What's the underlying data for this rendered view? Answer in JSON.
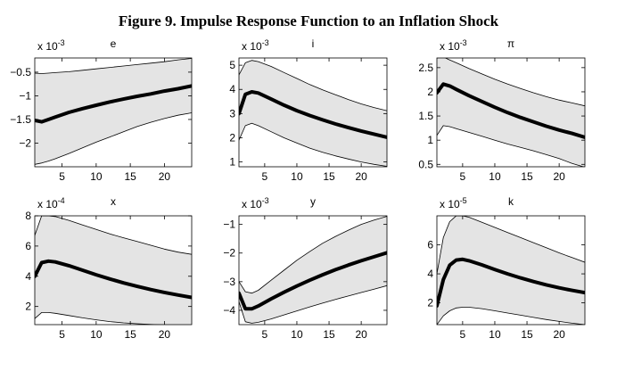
{
  "figure_title": "Figure 9. Impulse Response Function to an Inflation Shock",
  "colors": {
    "band_fill": "#e4e4e4",
    "line": "#000000",
    "axis": "#000000"
  },
  "chart_data": [
    {
      "type": "area",
      "title": "e",
      "multiplier": "x 10",
      "exponent": "-3",
      "xlim": [
        1,
        24
      ],
      "ylim": [
        -2.5,
        -0.2
      ],
      "xticks": [
        5,
        10,
        15,
        20
      ],
      "yticks": [
        -2,
        -1.5,
        -1,
        -0.5
      ],
      "ytick_labels": [
        "−2",
        "−1.5",
        "−1",
        "−0.5"
      ],
      "x": [
        1,
        2,
        3,
        4,
        6,
        8,
        10,
        12,
        14,
        16,
        18,
        20,
        22,
        24
      ],
      "series": [
        {
          "role": "band_upper",
          "values": [
            -0.52,
            -0.53,
            -0.52,
            -0.51,
            -0.49,
            -0.46,
            -0.43,
            -0.4,
            -0.37,
            -0.34,
            -0.31,
            -0.28,
            -0.24,
            -0.21
          ]
        },
        {
          "role": "band_lower",
          "values": [
            -2.45,
            -2.42,
            -2.38,
            -2.33,
            -2.22,
            -2.1,
            -1.98,
            -1.87,
            -1.76,
            -1.65,
            -1.56,
            -1.48,
            -1.41,
            -1.36
          ]
        },
        {
          "role": "median",
          "values": [
            -1.52,
            -1.55,
            -1.5,
            -1.45,
            -1.35,
            -1.27,
            -1.2,
            -1.13,
            -1.07,
            -1.01,
            -0.96,
            -0.9,
            -0.85,
            -0.79
          ]
        }
      ]
    },
    {
      "type": "area",
      "title": "i",
      "multiplier": "x 10",
      "exponent": "-3",
      "xlim": [
        1,
        24
      ],
      "ylim": [
        0.8,
        5.3
      ],
      "xticks": [
        5,
        10,
        15,
        20
      ],
      "yticks": [
        1,
        2,
        3,
        4,
        5
      ],
      "ytick_labels": [
        "1",
        "2",
        "3",
        "4",
        "5"
      ],
      "x": [
        1,
        2,
        3,
        4,
        6,
        8,
        10,
        12,
        14,
        16,
        18,
        20,
        22,
        24
      ],
      "series": [
        {
          "role": "band_upper",
          "values": [
            4.6,
            5.1,
            5.2,
            5.15,
            4.95,
            4.7,
            4.45,
            4.2,
            3.98,
            3.78,
            3.58,
            3.4,
            3.25,
            3.12
          ]
        },
        {
          "role": "band_lower",
          "values": [
            1.9,
            2.5,
            2.6,
            2.5,
            2.25,
            2.0,
            1.78,
            1.57,
            1.4,
            1.25,
            1.12,
            1.0,
            0.9,
            0.82
          ]
        },
        {
          "role": "median",
          "values": [
            3.0,
            3.8,
            3.9,
            3.85,
            3.6,
            3.35,
            3.12,
            2.92,
            2.74,
            2.57,
            2.42,
            2.28,
            2.15,
            2.02
          ]
        }
      ]
    },
    {
      "type": "area",
      "title": "π",
      "multiplier": "x 10",
      "exponent": "-3",
      "xlim": [
        1,
        24
      ],
      "ylim": [
        0.45,
        2.7
      ],
      "xticks": [
        5,
        10,
        15,
        20
      ],
      "yticks": [
        0.5,
        1,
        1.5,
        2,
        2.5
      ],
      "ytick_labels": [
        "0.5",
        "1",
        "1.5",
        "2",
        "2.5"
      ],
      "x": [
        1,
        2,
        3,
        4,
        6,
        8,
        10,
        12,
        14,
        16,
        18,
        20,
        22,
        24
      ],
      "series": [
        {
          "role": "band_upper",
          "values": [
            2.7,
            2.72,
            2.66,
            2.6,
            2.48,
            2.37,
            2.26,
            2.16,
            2.07,
            1.98,
            1.9,
            1.83,
            1.77,
            1.71
          ]
        },
        {
          "role": "band_lower",
          "values": [
            1.1,
            1.3,
            1.28,
            1.24,
            1.16,
            1.08,
            1.0,
            0.92,
            0.85,
            0.78,
            0.7,
            0.62,
            0.52,
            0.44
          ]
        },
        {
          "role": "median",
          "values": [
            1.98,
            2.16,
            2.12,
            2.05,
            1.92,
            1.8,
            1.68,
            1.57,
            1.47,
            1.38,
            1.29,
            1.21,
            1.14,
            1.06
          ]
        }
      ]
    },
    {
      "type": "area",
      "title": "x",
      "multiplier": "x 10",
      "exponent": "-4",
      "xlim": [
        1,
        24
      ],
      "ylim": [
        0.8,
        8
      ],
      "xticks": [
        5,
        10,
        15,
        20
      ],
      "yticks": [
        2,
        4,
        6,
        8
      ],
      "ytick_labels": [
        "2",
        "4",
        "6",
        "8"
      ],
      "x": [
        1,
        2,
        3,
        4,
        6,
        8,
        10,
        12,
        14,
        16,
        18,
        20,
        22,
        24
      ],
      "series": [
        {
          "role": "band_upper",
          "values": [
            6.7,
            8.0,
            8.0,
            7.95,
            7.7,
            7.4,
            7.1,
            6.8,
            6.55,
            6.3,
            6.05,
            5.8,
            5.6,
            5.45
          ]
        },
        {
          "role": "band_lower",
          "values": [
            1.2,
            1.6,
            1.6,
            1.55,
            1.4,
            1.25,
            1.12,
            1.0,
            0.92,
            0.86,
            0.81,
            0.78,
            0.75,
            0.72
          ]
        },
        {
          "role": "median",
          "values": [
            4.0,
            4.9,
            5.0,
            4.95,
            4.7,
            4.4,
            4.1,
            3.82,
            3.56,
            3.33,
            3.12,
            2.93,
            2.76,
            2.6
          ]
        }
      ]
    },
    {
      "type": "area",
      "title": "y",
      "multiplier": "x 10",
      "exponent": "-3",
      "xlim": [
        1,
        24
      ],
      "ylim": [
        -4.5,
        -0.7
      ],
      "xticks": [
        5,
        10,
        15,
        20
      ],
      "yticks": [
        -4,
        -3,
        -2,
        -1
      ],
      "ytick_labels": [
        "−4",
        "−3",
        "−2",
        "−1"
      ],
      "x": [
        1,
        2,
        3,
        4,
        6,
        8,
        10,
        12,
        14,
        16,
        18,
        20,
        22,
        24
      ],
      "series": [
        {
          "role": "band_upper",
          "values": [
            -3.0,
            -3.35,
            -3.4,
            -3.3,
            -2.95,
            -2.6,
            -2.25,
            -1.95,
            -1.66,
            -1.42,
            -1.2,
            -1.0,
            -0.85,
            -0.72
          ]
        },
        {
          "role": "band_lower",
          "values": [
            -3.7,
            -4.4,
            -4.45,
            -4.42,
            -4.3,
            -4.16,
            -4.02,
            -3.88,
            -3.75,
            -3.62,
            -3.5,
            -3.38,
            -3.26,
            -3.14
          ]
        },
        {
          "role": "median",
          "values": [
            -3.4,
            -3.95,
            -3.95,
            -3.85,
            -3.6,
            -3.37,
            -3.15,
            -2.95,
            -2.76,
            -2.58,
            -2.42,
            -2.27,
            -2.13,
            -1.99
          ]
        }
      ]
    },
    {
      "type": "area",
      "title": "k",
      "multiplier": "x 10",
      "exponent": "-5",
      "xlim": [
        1,
        24
      ],
      "ylim": [
        0.5,
        8
      ],
      "xticks": [
        5,
        10,
        15,
        20
      ],
      "yticks": [
        2,
        4,
        6
      ],
      "ytick_labels": [
        "2",
        "4",
        "6"
      ],
      "x": [
        1,
        2,
        3,
        4,
        5,
        6,
        8,
        10,
        12,
        14,
        16,
        18,
        20,
        22,
        24
      ],
      "series": [
        {
          "role": "band_upper",
          "values": [
            4.0,
            6.5,
            7.6,
            8.0,
            8.0,
            7.9,
            7.55,
            7.2,
            6.85,
            6.5,
            6.15,
            5.8,
            5.45,
            5.12,
            4.8
          ]
        },
        {
          "role": "band_lower",
          "values": [
            0.5,
            1.1,
            1.45,
            1.65,
            1.7,
            1.7,
            1.6,
            1.45,
            1.3,
            1.15,
            1.0,
            0.85,
            0.72,
            0.6,
            0.5
          ]
        },
        {
          "role": "median",
          "values": [
            1.8,
            3.6,
            4.6,
            4.95,
            5.0,
            4.9,
            4.62,
            4.3,
            4.0,
            3.72,
            3.47,
            3.24,
            3.04,
            2.86,
            2.7
          ]
        }
      ]
    }
  ]
}
